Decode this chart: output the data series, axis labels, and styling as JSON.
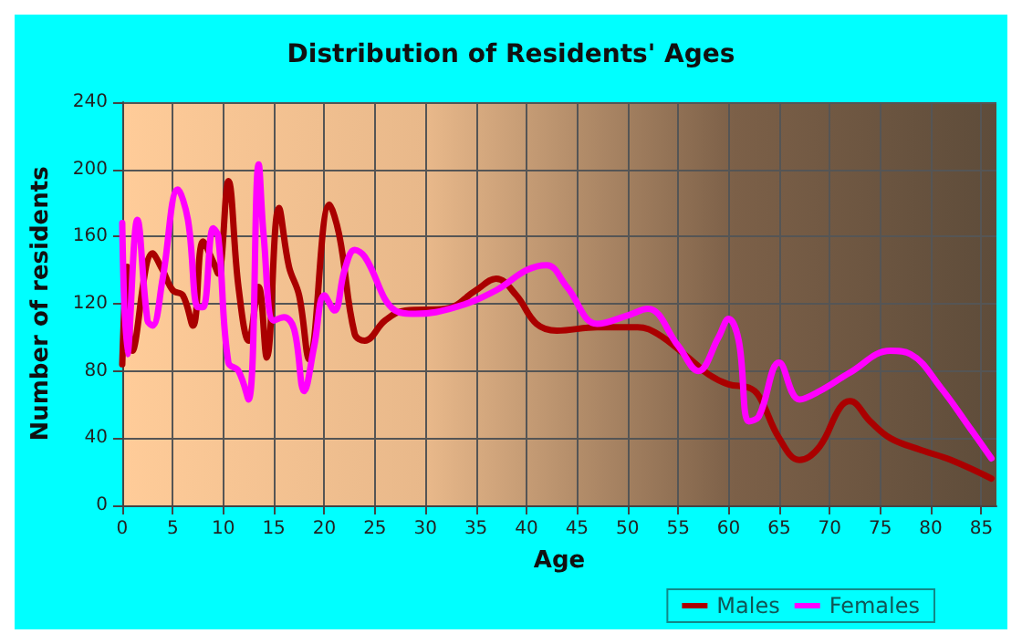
{
  "chart_data": {
    "type": "line",
    "title": "Distribution of Residents' Ages",
    "xlabel": "Age",
    "ylabel": "Number of residents",
    "xlim": [
      0,
      86.5
    ],
    "xticks": [
      0,
      5,
      10,
      15,
      20,
      25,
      30,
      35,
      40,
      45,
      50,
      55,
      60,
      65,
      70,
      75,
      80,
      85
    ],
    "ylim": [
      0,
      240
    ],
    "yticks": [
      0,
      40,
      80,
      120,
      160,
      200,
      240
    ],
    "grid": true,
    "legend": "bottom right",
    "marker": "none",
    "line_style": "solid",
    "series": [
      {
        "name": "Males",
        "color": "#aa0000",
        "x": [
          0,
          0.5,
          1,
          3,
          4,
          5,
          6,
          7,
          8,
          9,
          9.5,
          10.5,
          11.5,
          12.5,
          13.5,
          14.3,
          15.5,
          16.5,
          17.5,
          18.5,
          20.5,
          21.5,
          23,
          24,
          26,
          28,
          32,
          35,
          37,
          39,
          41,
          43,
          47,
          51,
          53,
          56,
          58,
          60,
          62,
          63,
          65,
          67,
          69,
          71,
          72,
          74,
          76,
          79,
          82,
          86
        ],
        "values": [
          84,
          142,
          92,
          150,
          140,
          128,
          125,
          107,
          157,
          145,
          138,
          193,
          130,
          98,
          130,
          88,
          177,
          142,
          125,
          87,
          179,
          160,
          102,
          98,
          110,
          116,
          117,
          128,
          135,
          125,
          108,
          104,
          106,
          106,
          102,
          88,
          78,
          72,
          70,
          65,
          40,
          27,
          35,
          58,
          62,
          50,
          40,
          33,
          27,
          16
        ]
      },
      {
        "name": "Females",
        "color": "#ff00ff",
        "x": [
          0,
          0.5,
          1.5,
          2.5,
          3,
          4,
          5.5,
          6.5,
          7.5,
          8,
          9,
          9.5,
          10.5,
          11.5,
          12.5,
          13.5,
          14,
          15,
          16,
          17,
          18,
          19,
          20,
          21,
          22,
          23,
          24,
          27,
          29,
          33,
          37,
          40,
          42,
          44,
          47,
          50,
          52,
          55,
          57,
          59,
          60,
          61,
          62,
          63,
          65,
          67,
          69,
          72,
          76,
          78,
          81,
          84,
          86
        ],
        "values": [
          168,
          90,
          170,
          110,
          107,
          135,
          188,
          170,
          118,
          118,
          165,
          160,
          85,
          80,
          63,
          203,
          160,
          110,
          112,
          105,
          68,
          95,
          125,
          116,
          140,
          152,
          148,
          116,
          114,
          118,
          128,
          140,
          143,
          130,
          108,
          113,
          117,
          95,
          80,
          100,
          111,
          98,
          50,
          53,
          85,
          63,
          68,
          79,
          92,
          90,
          70,
          45,
          28
        ]
      }
    ]
  }
}
